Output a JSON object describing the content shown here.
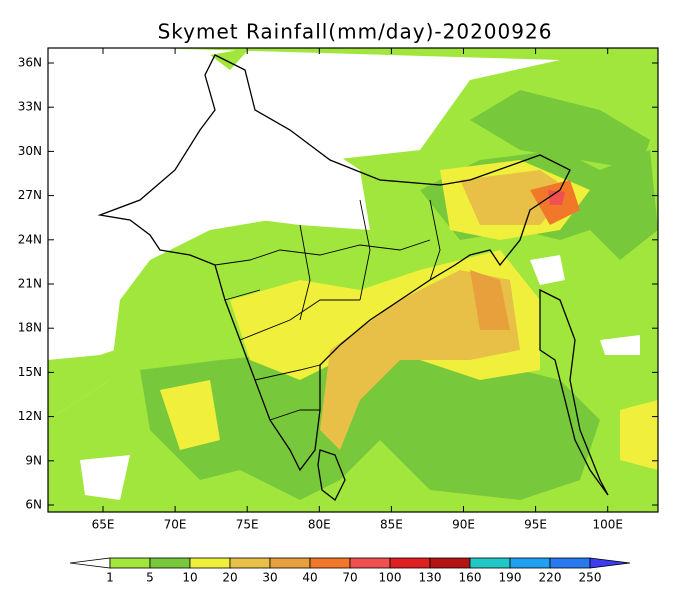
{
  "title": "Skymet Rainfall(mm/day)-20200926",
  "lon_labels": [
    "65E",
    "70E",
    "75E",
    "80E",
    "85E",
    "90E",
    "95E",
    "100E"
  ],
  "lat_labels": [
    "36N",
    "33N",
    "30N",
    "27N",
    "24N",
    "21N",
    "18N",
    "15N",
    "12N",
    "9N",
    "6N"
  ],
  "colorbar": {
    "levels": [
      1,
      5,
      10,
      20,
      30,
      40,
      70,
      100,
      130,
      160,
      190,
      220,
      250
    ],
    "colors": [
      "#ffffff",
      "#a0e63c",
      "#78c83c",
      "#f0f03c",
      "#e8c048",
      "#e8a03c",
      "#f07828",
      "#f05050",
      "#e02020",
      "#b41414",
      "#20c8c8",
      "#20a0f0",
      "#2878f0",
      "#3c3cf0"
    ]
  }
}
